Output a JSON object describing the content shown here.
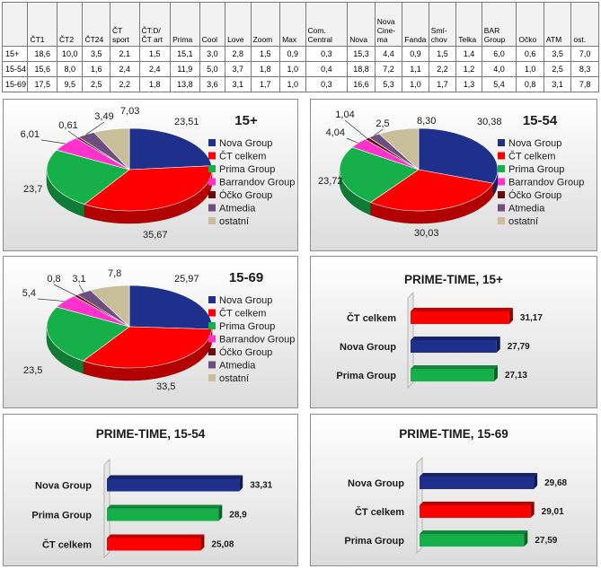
{
  "table": {
    "headers": [
      "",
      "ČT1",
      "ČT2",
      "ČT24",
      "ČT sport",
      "ČT:D/ ČT art",
      "Prima",
      "Cool",
      "Love",
      "Zoom",
      "Max",
      "Com. Central",
      "Nova",
      "Nova Cine-ma",
      "Fanda",
      "Smí-chov",
      "Telka",
      "BAR Group",
      "Očko",
      "ATM",
      "ost."
    ],
    "rows": [
      {
        "label": "15+",
        "values": [
          "18,6",
          "10,0",
          "3,5",
          "2,1",
          "1,5",
          "15,1",
          "3,0",
          "2,8",
          "1,5",
          "0,9",
          "0,3",
          "15,3",
          "4,4",
          "0,9",
          "1,5",
          "1,4",
          "6,0",
          "0,6",
          "3,5",
          "7,0"
        ]
      },
      {
        "label": "15-54",
        "values": [
          "15,6",
          "8,0",
          "1,6",
          "2,4",
          "2,4",
          "11,9",
          "5,0",
          "3,7",
          "1,8",
          "1,0",
          "0,4",
          "18,8",
          "7,2",
          "1,1",
          "2,2",
          "1,2",
          "4,0",
          "1,0",
          "2,5",
          "8,3"
        ]
      },
      {
        "label": "15-69",
        "values": [
          "17,5",
          "9,5",
          "2,5",
          "2,2",
          "1,8",
          "13,8",
          "3,6",
          "3,1",
          "1,7",
          "1,0",
          "0,3",
          "16,6",
          "5,3",
          "1,0",
          "1,7",
          "1,3",
          "5,4",
          "0,8",
          "3,1",
          "7,8"
        ]
      }
    ]
  },
  "legend": [
    {
      "name": "Nova Group",
      "color": "#1f2f8c"
    },
    {
      "name": "ČT celkem",
      "color": "#ff0000"
    },
    {
      "name": "Prima Group",
      "color": "#16b04a"
    },
    {
      "name": "Barrandov Group",
      "color": "#ff33cc"
    },
    {
      "name": "Óčko Group",
      "color": "#6b0a0a"
    },
    {
      "name": "Atmedia",
      "color": "#6d4e7e"
    },
    {
      "name": "ostatní",
      "color": "#c8bf9a"
    }
  ],
  "chart_data": [
    {
      "type": "pie",
      "title": "15+",
      "labels": [
        "Nova Group",
        "ČT celkem",
        "Prima Group",
        "Barrandov Group",
        "Óčko Group",
        "Atmedia",
        "ostatní"
      ],
      "values": [
        23.51,
        35.67,
        23.7,
        6.01,
        0.61,
        3.49,
        7.03
      ],
      "value_labels": [
        "23,51",
        "35,67",
        "23,7",
        "6,01",
        "0,61",
        "3,49",
        "7,03"
      ],
      "legend_position": "right"
    },
    {
      "type": "pie",
      "title": "15-54",
      "labels": [
        "Nova Group",
        "ČT celkem",
        "Prima Group",
        "Barrandov Group",
        "Óčko Group",
        "Atmedia",
        "ostatní"
      ],
      "values": [
        30.38,
        30.03,
        23.72,
        4.04,
        1.04,
        2.5,
        8.3
      ],
      "value_labels": [
        "30,38",
        "30,03",
        "23,72",
        "4,04",
        "1,04",
        "2,5",
        "8,30"
      ],
      "legend_position": "right"
    },
    {
      "type": "pie",
      "title": "15-69",
      "labels": [
        "Nova Group",
        "ČT celkem",
        "Prima Group",
        "Barrandov Group",
        "Óčko Group",
        "Atmedia",
        "ostatní"
      ],
      "values": [
        25.97,
        33.5,
        23.5,
        5.4,
        0.8,
        3.1,
        7.8
      ],
      "value_labels": [
        "25,97",
        "33,5",
        "23,5",
        "5,4",
        "0,8",
        "3,1",
        "7,8"
      ],
      "legend_position": "right"
    },
    {
      "type": "bar",
      "orientation": "horizontal",
      "title": "PRIME-TIME, 15+",
      "categories": [
        "ČT celkem",
        "Nova Group",
        "Prima Group"
      ],
      "values": [
        31.17,
        27.79,
        27.13
      ],
      "value_labels": [
        "31,17",
        "27,79",
        "27,13"
      ],
      "colors": [
        "#ff0000",
        "#1f2f8c",
        "#16b04a"
      ]
    },
    {
      "type": "bar",
      "orientation": "horizontal",
      "title": "PRIME-TIME, 15-54",
      "categories": [
        "Nova Group",
        "Prima Group",
        "ČT celkem"
      ],
      "values": [
        33.31,
        28.9,
        25.08
      ],
      "value_labels": [
        "33,31",
        "28,9",
        "25,08"
      ],
      "colors": [
        "#1f2f8c",
        "#16b04a",
        "#ff0000"
      ]
    },
    {
      "type": "bar",
      "orientation": "horizontal",
      "title": "PRIME-TIME, 15-69",
      "categories": [
        "Nova Group",
        "ČT celkem",
        "Prima Group"
      ],
      "values": [
        29.68,
        29.01,
        27.59
      ],
      "value_labels": [
        "29,68",
        "29,01",
        "27,59"
      ],
      "colors": [
        "#1f2f8c",
        "#ff0000",
        "#16b04a"
      ]
    }
  ]
}
